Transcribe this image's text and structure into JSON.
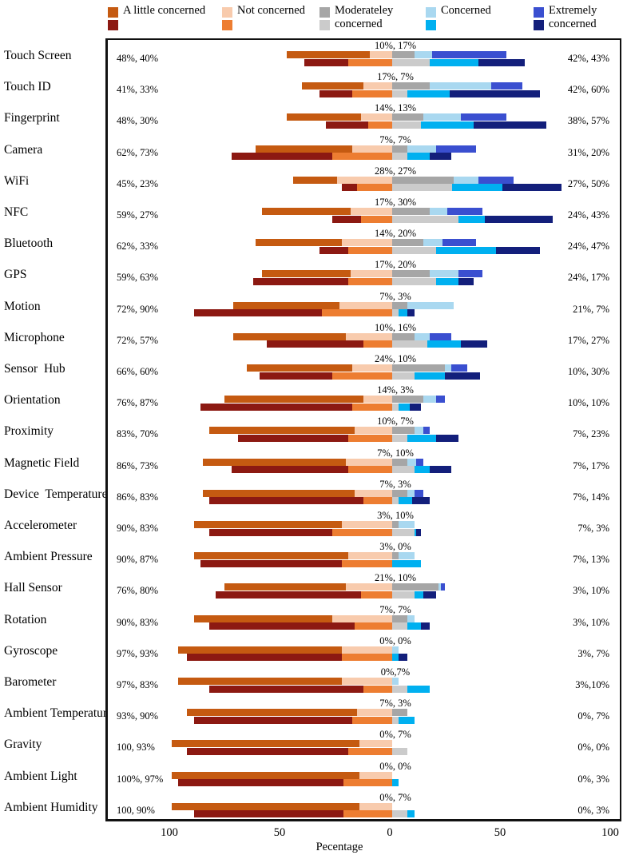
{
  "legend": {
    "items": [
      {
        "label": "A little concerned",
        "colors": [
          "#C55A11",
          "#8C1912"
        ]
      },
      {
        "label": "Not concerned",
        "colors": [
          "#F8CBAD",
          "#ED7D31"
        ]
      },
      {
        "label": "Moderateley concerned",
        "colors": [
          "#A6A6A6",
          "#CBCBCB"
        ]
      },
      {
        "label": "Concerned",
        "colors": [
          "#A9D8F0",
          "#00B0F0"
        ]
      },
      {
        "label": "Extremely concerned",
        "colors": [
          "#3A4FD0",
          "#131F7B"
        ]
      }
    ]
  },
  "axis": {
    "label": "Pecentage",
    "ticks": [
      "100",
      "50",
      "0",
      "50",
      "100"
    ],
    "tick_values": [
      -100,
      -50,
      0,
      50,
      100
    ]
  },
  "chart_data": {
    "type": "bar",
    "subtype": "diverging-stacked-bar-pairs",
    "title": "",
    "xlabel": "Pecentage",
    "ylabel": "",
    "xlim": [
      -100,
      100
    ],
    "grid": false,
    "legend_position": "top",
    "segment_order": [
      "a_little_concerned",
      "not_concerned",
      "moderately_concerned",
      "concerned",
      "extremely_concerned"
    ],
    "note": "Each category shows two bars (two respondent groups). Labels give group1, group2 values for left total (a little + not concerned), middle (moderately concerned) and right total (concerned + extremely). Segment splits are estimated from bar geometry.",
    "colors": {
      "group1": [
        "#C55A11",
        "#F8CBAD",
        "#A6A6A6",
        "#A9D8F0",
        "#3A4FD0"
      ],
      "group2": [
        "#8C1912",
        "#ED7D31",
        "#CBCBCB",
        "#00B0F0",
        "#131F7B"
      ]
    },
    "rows": [
      {
        "category": "Touch Screen",
        "labels": {
          "left": "48%, 40%",
          "middle": "10%, 17%",
          "right": "42%, 43%"
        },
        "group1_segments": [
          38,
          10,
          10,
          8,
          34
        ],
        "group2_segments": [
          20,
          20,
          17,
          22,
          21
        ]
      },
      {
        "category": "Touch ID",
        "labels": {
          "left": "41%, 33%",
          "middle": "17%, 7%",
          "right": "42%, 60%"
        },
        "group1_segments": [
          28,
          13,
          17,
          28,
          14
        ],
        "group2_segments": [
          15,
          18,
          7,
          19,
          41
        ]
      },
      {
        "category": "Fingerprint",
        "labels": {
          "left": "48%, 30%",
          "middle": "14%, 13%",
          "right": "38%, 57%"
        },
        "group1_segments": [
          34,
          14,
          14,
          17,
          21
        ],
        "group2_segments": [
          19,
          11,
          13,
          24,
          33
        ]
      },
      {
        "category": "Camera",
        "labels": {
          "left": "62%, 73%",
          "middle": "7%, 7%",
          "right": "31%, 20%"
        },
        "group1_segments": [
          44,
          18,
          7,
          13,
          18
        ],
        "group2_segments": [
          46,
          27,
          7,
          10,
          10
        ]
      },
      {
        "category": "WiFi",
        "labels": {
          "left": "45%, 23%",
          "middle": "28%, 27%",
          "right": "27%, 50%"
        },
        "group1_segments": [
          20,
          25,
          28,
          11,
          16
        ],
        "group2_segments": [
          7,
          16,
          27,
          23,
          27
        ]
      },
      {
        "category": "NFC",
        "labels": {
          "left": "59%, 27%",
          "middle": "17%, 30%",
          "right": "24%, 43%"
        },
        "group1_segments": [
          40,
          19,
          17,
          8,
          16
        ],
        "group2_segments": [
          13,
          14,
          30,
          12,
          31
        ]
      },
      {
        "category": "Bluetooth",
        "labels": {
          "left": "62%, 33%",
          "middle": "14%, 20%",
          "right": "24%, 47%"
        },
        "group1_segments": [
          39,
          23,
          14,
          9,
          15
        ],
        "group2_segments": [
          13,
          20,
          20,
          27,
          20
        ]
      },
      {
        "category": "GPS",
        "labels": {
          "left": "59%, 63%",
          "middle": "17%, 20%",
          "right": "24%, 17%"
        },
        "group1_segments": [
          40,
          19,
          17,
          13,
          11
        ],
        "group2_segments": [
          43,
          20,
          20,
          10,
          7
        ]
      },
      {
        "category": "Motion",
        "labels": {
          "left": "72%, 90%",
          "middle": "7%, 3%",
          "right": "21%, 7%"
        },
        "group1_segments": [
          48,
          24,
          7,
          21,
          0
        ],
        "group2_segments": [
          58,
          32,
          3,
          4,
          3
        ]
      },
      {
        "category": "Microphone",
        "labels": {
          "left": "72%, 57%",
          "middle": "10%, 16%",
          "right": "17%, 27%"
        },
        "group1_segments": [
          51,
          21,
          10,
          7,
          10
        ],
        "group2_segments": [
          44,
          13,
          16,
          15,
          12
        ]
      },
      {
        "category": "Sensor  Hub",
        "labels": {
          "left": "66%, 60%",
          "middle": "24%, 10%",
          "right": "10%, 30%"
        },
        "group1_segments": [
          48,
          18,
          24,
          3,
          7
        ],
        "group2_segments": [
          33,
          27,
          10,
          14,
          16
        ]
      },
      {
        "category": "Orientation",
        "labels": {
          "left": "76%, 87%",
          "middle": "14%, 3%",
          "right": "10%, 10%"
        },
        "group1_segments": [
          63,
          13,
          14,
          6,
          4
        ],
        "group2_segments": [
          69,
          18,
          3,
          5,
          5
        ]
      },
      {
        "category": "Proximity",
        "labels": {
          "left": "83%, 70%",
          "middle": "10%, 7%",
          "right": "7%, 23%"
        },
        "group1_segments": [
          66,
          17,
          10,
          4,
          3
        ],
        "group2_segments": [
          50,
          20,
          7,
          13,
          10
        ]
      },
      {
        "category": "Magnetic Field",
        "labels": {
          "left": "86%, 73%",
          "middle": "7%, 10%",
          "right": "7%, 17%"
        },
        "group1_segments": [
          65,
          21,
          7,
          4,
          3
        ],
        "group2_segments": [
          53,
          20,
          10,
          7,
          10
        ]
      },
      {
        "category": "Device  Temperature",
        "labels": {
          "left": "86%, 83%",
          "middle": "7%, 3%",
          "right": "7%, 14%"
        },
        "group1_segments": [
          69,
          17,
          7,
          3,
          4
        ],
        "group2_segments": [
          70,
          13,
          3,
          6,
          8
        ]
      },
      {
        "category": "Accelerometer",
        "labels": {
          "left": "90%, 83%",
          "middle": "3%, 10%",
          "right": "7%, 3%"
        },
        "group1_segments": [
          67,
          23,
          3,
          7,
          0
        ],
        "group2_segments": [
          56,
          27,
          10,
          1,
          2
        ]
      },
      {
        "category": "Ambient Pressure",
        "labels": {
          "left": "90%, 87%",
          "middle": "3%, 0%",
          "right": "7%, 13%"
        },
        "group1_segments": [
          70,
          20,
          3,
          7,
          0
        ],
        "group2_segments": [
          64,
          23,
          0,
          13,
          0
        ]
      },
      {
        "category": "Hall Sensor",
        "labels": {
          "left": "76%, 80%",
          "middle": "21%, 10%",
          "right": "3%, 10%"
        },
        "group1_segments": [
          55,
          21,
          21,
          1,
          2
        ],
        "group2_segments": [
          66,
          14,
          10,
          4,
          6
        ]
      },
      {
        "category": "Rotation",
        "labels": {
          "left": "90%, 83%",
          "middle": "7%, 7%",
          "right": "3%, 10%"
        },
        "group1_segments": [
          63,
          27,
          7,
          3,
          0
        ],
        "group2_segments": [
          66,
          17,
          7,
          6,
          4
        ]
      },
      {
        "category": "Gyroscope",
        "labels": {
          "left": "97%, 93%",
          "middle": "0%, 0%",
          "right": "3%, 7%"
        },
        "group1_segments": [
          74,
          23,
          0,
          3,
          0
        ],
        "group2_segments": [
          70,
          23,
          0,
          3,
          4
        ]
      },
      {
        "category": "Barometer",
        "labels": {
          "left": "97%, 83%",
          "middle": "0%,7%",
          "right": "3%,10%"
        },
        "group1_segments": [
          74,
          23,
          0,
          3,
          0
        ],
        "group2_segments": [
          70,
          13,
          7,
          10,
          0
        ]
      },
      {
        "category": "Ambient Temperature",
        "labels": {
          "left": "93%, 90%",
          "middle": "7%, 3%",
          "right": "0%, 7%"
        },
        "group1_segments": [
          77,
          16,
          7,
          0,
          0
        ],
        "group2_segments": [
          72,
          18,
          3,
          7,
          0
        ]
      },
      {
        "category": "Gravity",
        "labels": {
          "left": "100, 93%",
          "middle": "0%, 7%",
          "right": "0%, 0%"
        },
        "group1_segments": [
          85,
          15,
          0,
          0,
          0
        ],
        "group2_segments": [
          73,
          20,
          7,
          0,
          0
        ]
      },
      {
        "category": "Ambient Light",
        "labels": {
          "left": "100%, 97%",
          "middle": "0%, 0%",
          "right": "0%, 3%"
        },
        "group1_segments": [
          85,
          15,
          0,
          0,
          0
        ],
        "group2_segments": [
          75,
          22,
          0,
          3,
          0
        ]
      },
      {
        "category": "Ambient Humidity",
        "labels": {
          "left": "100, 90%",
          "middle": "0%, 7%",
          "right": "0%, 3%"
        },
        "group1_segments": [
          85,
          15,
          0,
          0,
          0
        ],
        "group2_segments": [
          68,
          22,
          7,
          3,
          0
        ]
      }
    ]
  }
}
